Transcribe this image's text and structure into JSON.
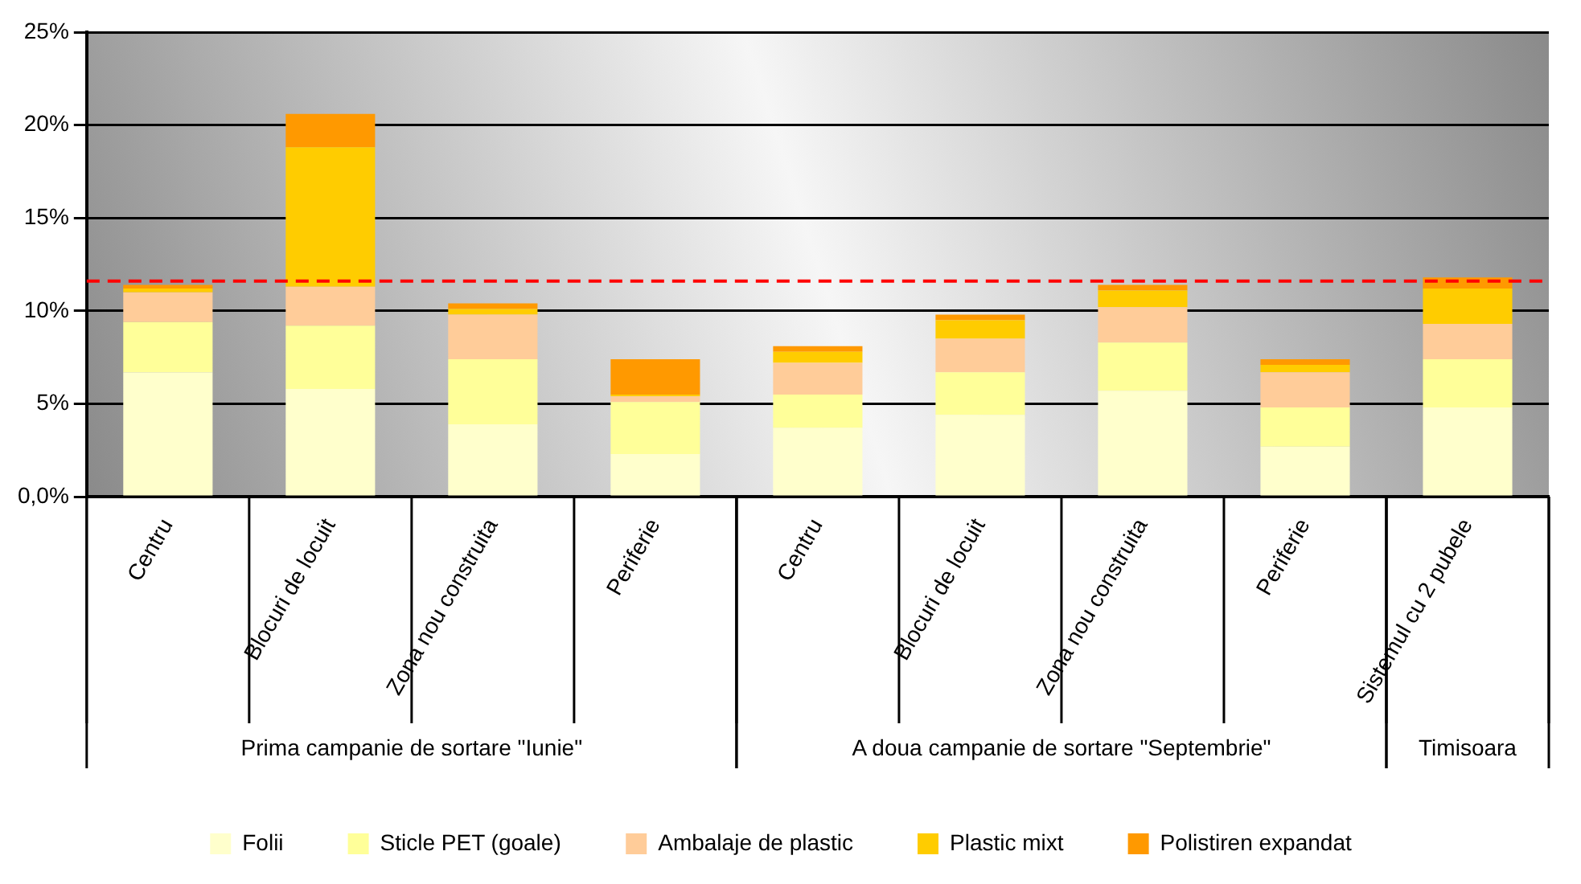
{
  "chart_data": {
    "type": "bar",
    "stacked": true,
    "categories": [
      "Centru",
      "Blocuri de locuit",
      "Zona nou construita",
      "Periferie",
      "Centru",
      "Blocuri de locuit",
      "Zona nou construita",
      "Periferie",
      "Sistemul cu 2 pubele"
    ],
    "series": [
      {
        "name": "Folii",
        "color": "#ffffcc",
        "values": [
          6.7,
          5.8,
          3.9,
          2.3,
          3.7,
          4.4,
          5.7,
          2.7,
          4.8
        ]
      },
      {
        "name": "Sticle PET (goale)",
        "color": "#ffff99",
        "values": [
          2.7,
          3.4,
          3.5,
          2.8,
          1.8,
          2.3,
          2.6,
          2.1,
          2.6
        ]
      },
      {
        "name": "Ambalaje de plastic",
        "color": "#ffcc99",
        "values": [
          1.6,
          2.1,
          2.4,
          0.3,
          1.7,
          1.8,
          1.9,
          1.9,
          1.9
        ]
      },
      {
        "name": "Plastic mixt",
        "color": "#ffcc00",
        "values": [
          0.2,
          7.5,
          0.3,
          0.1,
          0.6,
          1.0,
          0.9,
          0.4,
          1.9
        ]
      },
      {
        "name": "Polistiren expandat",
        "color": "#ff9900",
        "values": [
          0.2,
          1.8,
          0.3,
          1.9,
          0.3,
          0.3,
          0.3,
          0.3,
          0.6
        ]
      }
    ],
    "ylim": [
      0,
      25
    ],
    "yticks": [
      {
        "value": 0,
        "label": "0,0%"
      },
      {
        "value": 5,
        "label": "5%"
      },
      {
        "value": 10,
        "label": "10%"
      },
      {
        "value": 15,
        "label": "15%"
      },
      {
        "value": 20,
        "label": "20%"
      },
      {
        "value": 25,
        "label": "25%"
      }
    ],
    "grid": "y",
    "legend": "bottom",
    "ref_lines": [
      {
        "axis": "y",
        "value": 11.6,
        "color": "#ff0000",
        "line_style": "dashed"
      }
    ],
    "annotations": [
      "Prima campanie de sortare \"Iunie\"",
      "A doua campanie de sortare \"Septembrie\"",
      "Timisoara"
    ]
  }
}
